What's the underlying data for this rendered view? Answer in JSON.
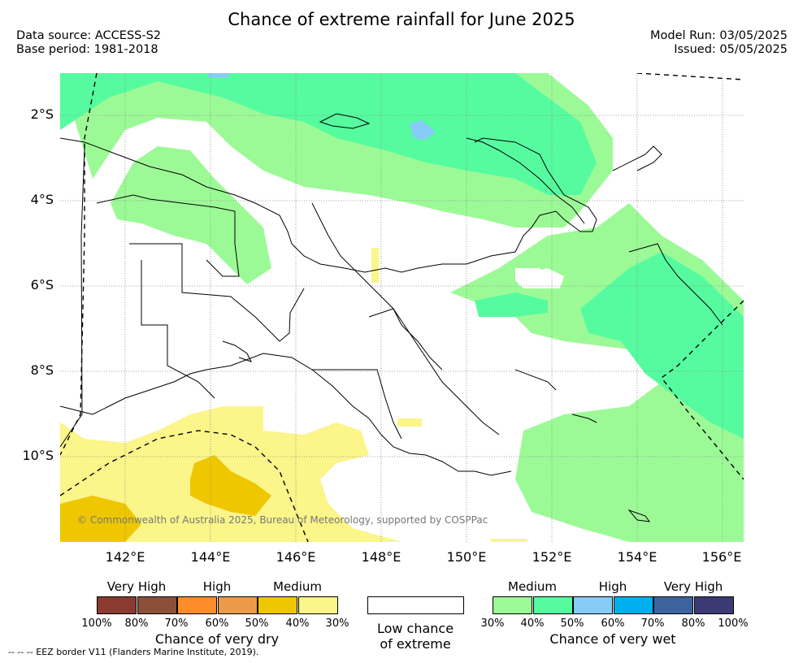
{
  "title": "Chance of extreme rainfall for June 2025",
  "data_source": "Data source: ACCESS-S2",
  "base_period": "Base period: 1981-2018",
  "model_run": "Model Run: 03/05/2025",
  "issued": "Issued: 05/05/2025",
  "lat_labels": [
    "2°S",
    "4°S",
    "6°S",
    "8°S",
    "10°S"
  ],
  "lon_labels": [
    "142°E",
    "144°E",
    "146°E",
    "148°E",
    "150°E",
    "152°E",
    "154°E",
    "156°E"
  ],
  "copyright": "© Commonwealth of Australia 2025, Bureau of Meteorology, supported by COSPPac",
  "legend": {
    "dry": {
      "headings": [
        "Very High",
        "High",
        "Medium"
      ],
      "percents": [
        "100%",
        "80%",
        "70%",
        "60%",
        "50%",
        "40%",
        "30%"
      ],
      "colors": [
        "#8b3a2f",
        "#8b4f3a",
        "#ff8c2a",
        "#eb9a4a",
        "#eec700",
        "#fbf58a"
      ],
      "caption": "Chance of very dry"
    },
    "neutral": {
      "caption_line1": "Low chance",
      "caption_line2": "of extreme"
    },
    "wet": {
      "headings": [
        "Medium",
        "High",
        "Very High"
      ],
      "percents": [
        "30%",
        "40%",
        "50%",
        "60%",
        "70%",
        "80%",
        "100%"
      ],
      "colors": [
        "#9cfa96",
        "#56fba0",
        "#87ccf7",
        "#00b0ee",
        "#3c649f",
        "#3c3a76"
      ],
      "caption": "Chance of very wet"
    }
  },
  "eez_note": "--  --  -- EEZ border V11 (Flanders Marine Institute, 2019).",
  "colors": {
    "wet_medium": "#9cfa96",
    "wet_medium_high": "#56fba0",
    "wet_high": "#87ccf7",
    "dry_medium": "#fbf58a",
    "dry_medium_high": "#eec700"
  }
}
